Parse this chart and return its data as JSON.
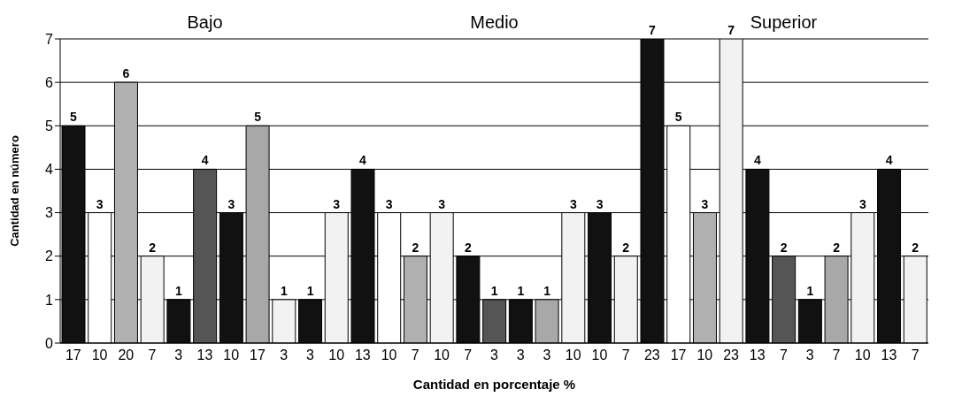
{
  "chart_data": {
    "type": "bar",
    "xlabel": "Cantidad en porcentaje %",
    "ylabel": "Cantidad en número",
    "annotations": [
      "Bajo",
      "Medio",
      "Superior"
    ],
    "categories": [
      "17",
      "10",
      "20",
      "7",
      "3",
      "13",
      "10",
      "17",
      "3",
      "3",
      "10",
      "13",
      "10",
      "7",
      "10",
      "7",
      "3",
      "3",
      "3",
      "10",
      "10",
      "7",
      "23",
      "17",
      "10",
      "23",
      "13",
      "7",
      "3",
      "7",
      "10",
      "13",
      "7"
    ],
    "values": [
      5,
      3,
      6,
      2,
      1,
      4,
      3,
      5,
      1,
      1,
      3,
      4,
      3,
      2,
      3,
      2,
      1,
      1,
      1,
      3,
      3,
      2,
      7,
      5,
      3,
      7,
      4,
      2,
      1,
      2,
      3,
      4,
      2
    ],
    "colors": [
      "#111111",
      "#ffffff",
      "#b0b0b0",
      "#f2f2f2",
      "#111111",
      "#555555",
      "#111111",
      "#a8a8a8",
      "#f2f2f2",
      "#111111",
      "#f2f2f2",
      "#111111",
      "#ffffff",
      "#b0b0b0",
      "#f2f2f2",
      "#111111",
      "#555555",
      "#111111",
      "#a8a8a8",
      "#f2f2f2",
      "#111111",
      "#f2f2f2",
      "#111111",
      "#ffffff",
      "#b0b0b0",
      "#f2f2f2",
      "#111111",
      "#555555",
      "#111111",
      "#a8a8a8",
      "#f2f2f2",
      "#111111",
      "#f2f2f2"
    ],
    "ylim": [
      0,
      7
    ],
    "yticks": [
      0,
      1,
      2,
      3,
      4,
      5,
      6,
      7
    ],
    "grid": "y",
    "data_labels": true
  }
}
